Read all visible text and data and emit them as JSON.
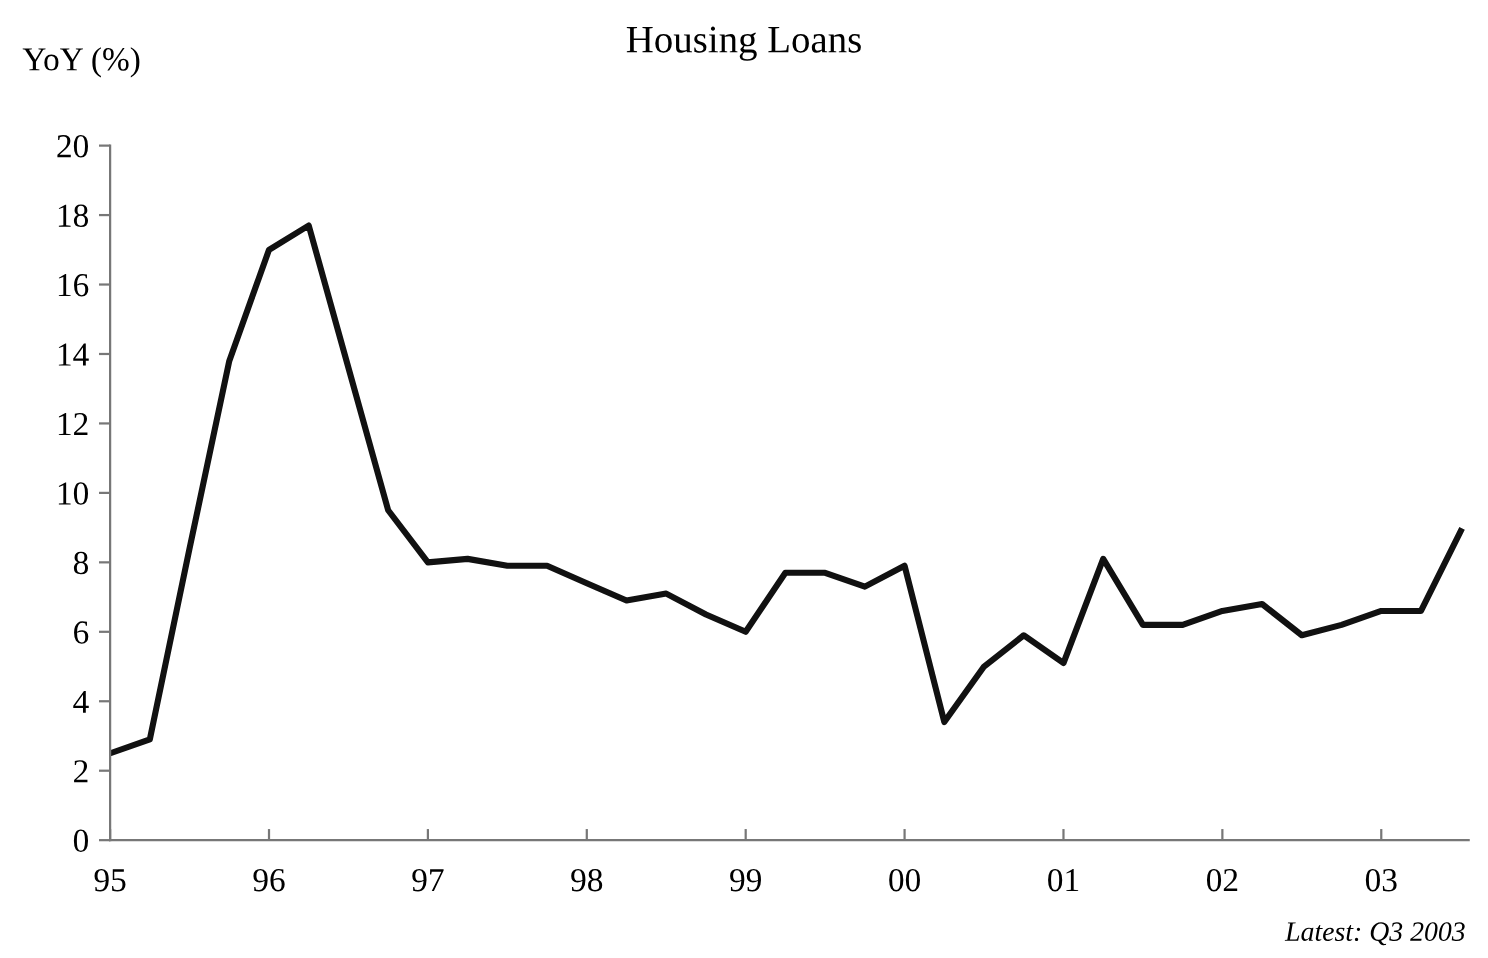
{
  "chart_data": {
    "type": "line",
    "title": "Housing Loans",
    "ylabel": "YoY (%)",
    "x": [
      1995.0,
      1995.25,
      1995.5,
      1995.75,
      1996.0,
      1996.25,
      1996.5,
      1996.75,
      1997.0,
      1997.25,
      1997.5,
      1997.75,
      1998.0,
      1998.25,
      1998.5,
      1998.75,
      1999.0,
      1999.25,
      1999.5,
      1999.75,
      2000.0,
      2000.25,
      2000.5,
      2000.75,
      2001.0,
      2001.25,
      2001.5,
      2001.75,
      2002.0,
      2002.25,
      2002.5,
      2002.75,
      2003.0,
      2003.25,
      2003.5
    ],
    "series": [
      {
        "color": "#111111",
        "values": [
          2.5,
          2.9,
          8.4,
          13.8,
          17.0,
          17.7,
          13.6,
          9.5,
          8.0,
          8.1,
          7.9,
          7.9,
          7.4,
          6.9,
          7.1,
          6.5,
          6.0,
          7.7,
          7.7,
          7.3,
          7.9,
          3.4,
          5.0,
          5.9,
          5.1,
          8.1,
          6.2,
          6.2,
          6.6,
          6.8,
          5.9,
          6.2,
          6.6,
          6.6,
          8.9
        ]
      }
    ],
    "xlim": [
      1995.0,
      2003.55
    ],
    "ylim": [
      0,
      20
    ],
    "xticks": [
      {
        "value": 1995,
        "label": "95"
      },
      {
        "value": 1996,
        "label": "96"
      },
      {
        "value": 1997,
        "label": "97"
      },
      {
        "value": 1998,
        "label": "98"
      },
      {
        "value": 1999,
        "label": "99"
      },
      {
        "value": 2000,
        "label": "00"
      },
      {
        "value": 2001,
        "label": "01"
      },
      {
        "value": 2002,
        "label": "02"
      },
      {
        "value": 2003,
        "label": "03"
      }
    ],
    "yticks": [
      0,
      2,
      4,
      6,
      8,
      10,
      12,
      14,
      16,
      18,
      20
    ],
    "grid": false,
    "legend": false,
    "marker": "none",
    "line_style": "solid",
    "annotations": [
      "Latest: Q3 2003"
    ]
  }
}
